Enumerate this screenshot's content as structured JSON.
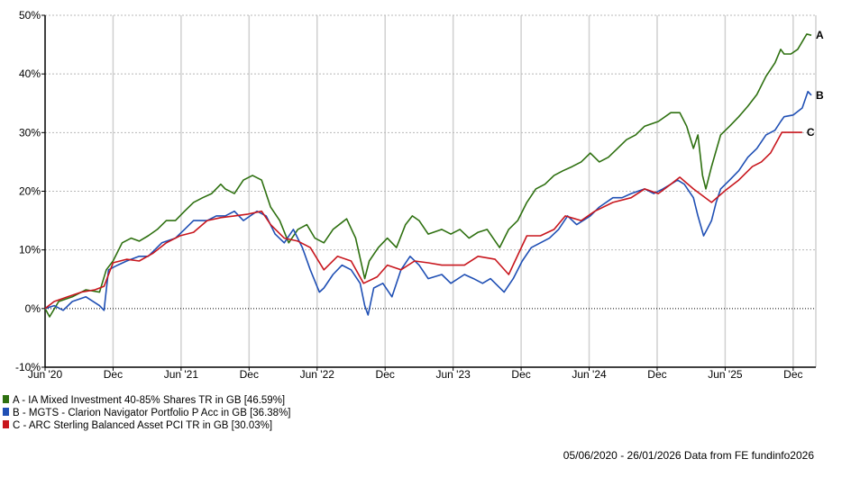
{
  "chart_data": {
    "type": "line",
    "title": "",
    "xlabel": "",
    "ylabel": "",
    "x_unit": "months since 05/06/2020",
    "xlim": [
      0,
      68
    ],
    "ylim": [
      -10,
      50
    ],
    "grid": true,
    "legend_position": "bottom-left",
    "y_ticks": [
      -10,
      0,
      10,
      20,
      30,
      40,
      50
    ],
    "y_tick_labels": [
      "-10%",
      "0%",
      "10%",
      "20%",
      "30%",
      "40%",
      "50%"
    ],
    "x_ticks": [
      0,
      6,
      12,
      18,
      24,
      30,
      36,
      42,
      48,
      54,
      60,
      66
    ],
    "x_tick_labels": [
      "Jun '20",
      "Dec",
      "Jun '21",
      "Dec",
      "Jun '22",
      "Dec",
      "Jun '23",
      "Dec",
      "Jun '24",
      "Dec",
      "Jun '25",
      "Dec"
    ],
    "series": [
      {
        "name": "A - IA Mixed Investment 40-85% Shares TR in GB [46.59%]",
        "end_label": "A",
        "color": "#2e7010",
        "points": [
          [
            0,
            0
          ],
          [
            0.4,
            -1.4
          ],
          [
            1.2,
            1.2
          ],
          [
            2.4,
            2.0
          ],
          [
            3.6,
            3.2
          ],
          [
            4.8,
            2.8
          ],
          [
            5.4,
            6.6
          ],
          [
            6.0,
            8.1
          ],
          [
            6.8,
            11.2
          ],
          [
            7.6,
            12.0
          ],
          [
            8.3,
            11.5
          ],
          [
            9.1,
            12.4
          ],
          [
            9.9,
            13.5
          ],
          [
            10.7,
            15.0
          ],
          [
            11.5,
            15.0
          ],
          [
            12.3,
            16.6
          ],
          [
            13.1,
            18.1
          ],
          [
            13.9,
            18.9
          ],
          [
            14.7,
            19.6
          ],
          [
            15.5,
            21.2
          ],
          [
            15.9,
            20.4
          ],
          [
            16.7,
            19.6
          ],
          [
            17.5,
            21.9
          ],
          [
            18.3,
            22.7
          ],
          [
            19.1,
            21.9
          ],
          [
            19.9,
            17.3
          ],
          [
            20.7,
            15.0
          ],
          [
            21.5,
            11.2
          ],
          [
            22.3,
            13.5
          ],
          [
            23.1,
            14.3
          ],
          [
            23.8,
            12.0
          ],
          [
            24.6,
            11.2
          ],
          [
            25.4,
            13.5
          ],
          [
            26.6,
            15.3
          ],
          [
            27.4,
            12.0
          ],
          [
            28.2,
            5.1
          ],
          [
            28.6,
            8.1
          ],
          [
            29.4,
            10.4
          ],
          [
            30.2,
            12.0
          ],
          [
            31.0,
            10.4
          ],
          [
            31.8,
            14.3
          ],
          [
            32.4,
            15.8
          ],
          [
            33.0,
            15.0
          ],
          [
            33.8,
            12.7
          ],
          [
            35.0,
            13.5
          ],
          [
            35.8,
            12.7
          ],
          [
            36.6,
            13.5
          ],
          [
            37.4,
            12.0
          ],
          [
            38.2,
            13.0
          ],
          [
            39.0,
            13.5
          ],
          [
            40.1,
            10.4
          ],
          [
            40.9,
            13.5
          ],
          [
            41.7,
            15.0
          ],
          [
            42.5,
            18.1
          ],
          [
            43.3,
            20.4
          ],
          [
            44.1,
            21.2
          ],
          [
            44.9,
            22.7
          ],
          [
            45.7,
            23.5
          ],
          [
            46.5,
            24.2
          ],
          [
            47.3,
            25.0
          ],
          [
            48.1,
            26.5
          ],
          [
            48.9,
            25.0
          ],
          [
            49.7,
            25.8
          ],
          [
            50.5,
            27.3
          ],
          [
            51.3,
            28.8
          ],
          [
            52.1,
            29.6
          ],
          [
            52.9,
            31.1
          ],
          [
            54.1,
            31.9
          ],
          [
            55.2,
            33.4
          ],
          [
            56.0,
            33.4
          ],
          [
            56.6,
            31.1
          ],
          [
            57.2,
            27.3
          ],
          [
            57.6,
            29.6
          ],
          [
            58.0,
            22.7
          ],
          [
            58.3,
            20.4
          ],
          [
            58.8,
            24.2
          ],
          [
            59.6,
            29.6
          ],
          [
            60.4,
            31.1
          ],
          [
            61.2,
            32.7
          ],
          [
            62.0,
            34.5
          ],
          [
            62.8,
            36.5
          ],
          [
            63.6,
            39.6
          ],
          [
            64.4,
            41.9
          ],
          [
            64.9,
            44.2
          ],
          [
            65.2,
            43.4
          ],
          [
            65.8,
            43.4
          ],
          [
            66.4,
            44.2
          ],
          [
            67.2,
            46.8
          ],
          [
            67.6,
            46.59
          ]
        ]
      },
      {
        "name": "B - MGTS - Clarion Navigator Portfolio P Acc in GB [36.38%]",
        "end_label": "B",
        "color": "#1f4fb4",
        "points": [
          [
            0,
            0
          ],
          [
            0.8,
            0.5
          ],
          [
            1.6,
            -0.3
          ],
          [
            2.4,
            1.2
          ],
          [
            3.6,
            2.0
          ],
          [
            4.8,
            0.5
          ],
          [
            5.2,
            -0.3
          ],
          [
            5.6,
            6.6
          ],
          [
            6.4,
            7.4
          ],
          [
            7.2,
            8.1
          ],
          [
            8.3,
            8.9
          ],
          [
            9.1,
            8.9
          ],
          [
            10.3,
            11.2
          ],
          [
            11.5,
            12.0
          ],
          [
            12.3,
            13.5
          ],
          [
            13.1,
            15.0
          ],
          [
            14.3,
            15.0
          ],
          [
            15.1,
            15.8
          ],
          [
            15.9,
            15.8
          ],
          [
            16.7,
            16.6
          ],
          [
            17.5,
            15.0
          ],
          [
            18.7,
            16.6
          ],
          [
            19.5,
            15.8
          ],
          [
            20.3,
            12.7
          ],
          [
            21.1,
            11.2
          ],
          [
            21.9,
            13.5
          ],
          [
            22.7,
            10.4
          ],
          [
            23.4,
            6.6
          ],
          [
            24.2,
            2.8
          ],
          [
            24.6,
            3.5
          ],
          [
            25.4,
            5.8
          ],
          [
            26.2,
            7.4
          ],
          [
            27.0,
            6.6
          ],
          [
            27.8,
            4.3
          ],
          [
            28.2,
            0.5
          ],
          [
            28.5,
            -1.1
          ],
          [
            29.0,
            3.5
          ],
          [
            29.8,
            4.3
          ],
          [
            30.6,
            2.0
          ],
          [
            31.4,
            6.6
          ],
          [
            32.2,
            8.9
          ],
          [
            33.0,
            7.4
          ],
          [
            33.8,
            5.1
          ],
          [
            35.0,
            5.8
          ],
          [
            35.8,
            4.3
          ],
          [
            37.0,
            5.8
          ],
          [
            37.8,
            5.1
          ],
          [
            38.6,
            4.3
          ],
          [
            39.3,
            5.1
          ],
          [
            40.5,
            2.8
          ],
          [
            41.3,
            5.1
          ],
          [
            42.1,
            8.1
          ],
          [
            42.9,
            10.4
          ],
          [
            43.7,
            11.2
          ],
          [
            44.5,
            12.0
          ],
          [
            45.3,
            13.5
          ],
          [
            46.1,
            15.8
          ],
          [
            46.9,
            14.3
          ],
          [
            48.1,
            15.8
          ],
          [
            48.9,
            17.3
          ],
          [
            50.1,
            18.9
          ],
          [
            50.9,
            18.9
          ],
          [
            51.7,
            19.6
          ],
          [
            52.9,
            20.4
          ],
          [
            53.7,
            19.6
          ],
          [
            54.5,
            20.4
          ],
          [
            55.2,
            21.2
          ],
          [
            55.8,
            21.9
          ],
          [
            56.4,
            21.2
          ],
          [
            57.2,
            18.9
          ],
          [
            57.6,
            15.8
          ],
          [
            58.1,
            12.4
          ],
          [
            58.4,
            13.5
          ],
          [
            58.8,
            15.0
          ],
          [
            59.2,
            18.1
          ],
          [
            59.6,
            20.4
          ],
          [
            60.4,
            21.9
          ],
          [
            61.2,
            23.5
          ],
          [
            62.0,
            25.8
          ],
          [
            62.8,
            27.3
          ],
          [
            63.6,
            29.6
          ],
          [
            64.4,
            30.4
          ],
          [
            64.9,
            31.9
          ],
          [
            65.2,
            32.7
          ],
          [
            66.0,
            33.0
          ],
          [
            66.8,
            34.2
          ],
          [
            67.3,
            37.0
          ],
          [
            67.6,
            36.38
          ]
        ]
      },
      {
        "name": "C - ARC Sterling Balanced Asset PCI TR in GB [30.03%]",
        "end_label": "C",
        "color": "#c8161d",
        "points": [
          [
            0,
            0
          ],
          [
            0.8,
            1.2
          ],
          [
            2.0,
            2.0
          ],
          [
            3.2,
            2.8
          ],
          [
            4.4,
            3.2
          ],
          [
            5.2,
            3.8
          ],
          [
            6.0,
            7.8
          ],
          [
            7.2,
            8.4
          ],
          [
            8.3,
            8.1
          ],
          [
            9.5,
            9.4
          ],
          [
            10.7,
            11.2
          ],
          [
            11.9,
            12.4
          ],
          [
            13.1,
            13.0
          ],
          [
            14.3,
            15.0
          ],
          [
            15.5,
            15.5
          ],
          [
            16.7,
            15.8
          ],
          [
            17.9,
            16.1
          ],
          [
            19.1,
            16.6
          ],
          [
            19.9,
            14.3
          ],
          [
            21.1,
            12.0
          ],
          [
            22.3,
            11.5
          ],
          [
            23.4,
            10.4
          ],
          [
            24.6,
            6.6
          ],
          [
            25.8,
            8.9
          ],
          [
            27.0,
            8.1
          ],
          [
            28.1,
            4.3
          ],
          [
            29.3,
            5.4
          ],
          [
            30.2,
            7.4
          ],
          [
            31.4,
            6.6
          ],
          [
            32.6,
            8.1
          ],
          [
            33.8,
            7.8
          ],
          [
            35.0,
            7.4
          ],
          [
            37.0,
            7.4
          ],
          [
            38.2,
            8.9
          ],
          [
            39.7,
            8.4
          ],
          [
            40.9,
            5.8
          ],
          [
            42.5,
            12.4
          ],
          [
            43.7,
            12.4
          ],
          [
            44.9,
            13.5
          ],
          [
            45.9,
            15.8
          ],
          [
            47.3,
            15.0
          ],
          [
            48.5,
            16.6
          ],
          [
            50.1,
            18.1
          ],
          [
            51.7,
            18.9
          ],
          [
            52.9,
            20.4
          ],
          [
            54.1,
            19.6
          ],
          [
            55.2,
            21.2
          ],
          [
            56.0,
            22.4
          ],
          [
            57.2,
            20.4
          ],
          [
            58.8,
            18.1
          ],
          [
            60.0,
            20.1
          ],
          [
            61.2,
            21.9
          ],
          [
            62.4,
            24.2
          ],
          [
            63.2,
            25.0
          ],
          [
            64.0,
            26.5
          ],
          [
            65.0,
            30.03
          ],
          [
            66.8,
            30.03
          ]
        ]
      }
    ],
    "footer": "05/06/2020 - 26/01/2026 Data from FE fundinfo2026"
  }
}
